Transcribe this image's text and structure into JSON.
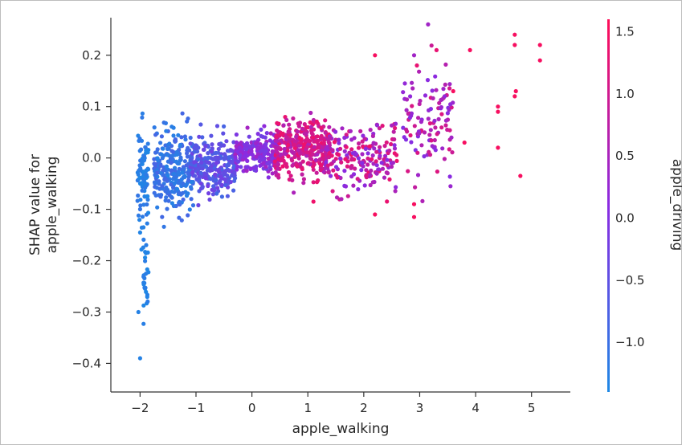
{
  "chart_data": {
    "type": "scatter",
    "title": "",
    "xlabel": "apple_walking",
    "ylabel_lines": [
      "SHAP value for",
      "apple_walking"
    ],
    "xlim": [
      -2.35,
      5.55
    ],
    "ylim": [
      -0.44,
      0.27
    ],
    "x_ticks": [
      {
        "value": -2,
        "label": "−2"
      },
      {
        "value": -1,
        "label": "−1"
      },
      {
        "value": 0,
        "label": "0"
      },
      {
        "value": 1,
        "label": "1"
      },
      {
        "value": 2,
        "label": "2"
      },
      {
        "value": 3,
        "label": "3"
      },
      {
        "value": 4,
        "label": "4"
      },
      {
        "value": 5,
        "label": "5"
      }
    ],
    "y_ticks": [
      {
        "value": 0.2,
        "label": "0.2"
      },
      {
        "value": 0.1,
        "label": "0.1"
      },
      {
        "value": 0.0,
        "label": "0.0"
      },
      {
        "value": -0.1,
        "label": "−0.1"
      },
      {
        "value": -0.2,
        "label": "−0.2"
      },
      {
        "value": -0.3,
        "label": "−0.3"
      },
      {
        "value": -0.4,
        "label": "−0.4"
      }
    ],
    "colorbar": {
      "label": "apple_driving",
      "range": [
        -1.4,
        1.6
      ],
      "ticks": [
        {
          "value": 1.5,
          "label": "1.5"
        },
        {
          "value": 1.0,
          "label": "1.0"
        },
        {
          "value": 0.5,
          "label": "0.5"
        },
        {
          "value": 0.0,
          "label": "0.0"
        },
        {
          "value": -0.5,
          "label": "−0.5"
        },
        {
          "value": -1.0,
          "label": "−1.0"
        }
      ],
      "color_low": "#1e88e5",
      "color_mid": "#8a2be2",
      "color_high": "#ff0d57"
    },
    "clusters": [
      {
        "x_range": [
          -2.05,
          -1.85
        ],
        "y_center": -0.04,
        "y_spread": 0.09,
        "count": 90,
        "c_range": [
          -1.4,
          -1.1
        ]
      },
      {
        "x_range": [
          -1.95,
          -1.85
        ],
        "y_center": -0.24,
        "y_spread": 0.06,
        "count": 25,
        "c_range": [
          -1.4,
          -1.2
        ]
      },
      {
        "x_range": [
          -1.75,
          -1.05
        ],
        "y_center": -0.02,
        "y_spread": 0.07,
        "count": 260,
        "c_range": [
          -1.3,
          -0.8
        ]
      },
      {
        "x_range": [
          -1.1,
          -0.3
        ],
        "y_center": -0.02,
        "y_spread": 0.045,
        "count": 260,
        "c_range": [
          -0.9,
          -0.2
        ]
      },
      {
        "x_range": [
          -0.3,
          0.5
        ],
        "y_center": 0.01,
        "y_spread": 0.03,
        "count": 220,
        "c_range": [
          -0.3,
          0.5
        ]
      },
      {
        "x_range": [
          0.4,
          1.4
        ],
        "y_center": 0.02,
        "y_spread": 0.045,
        "count": 330,
        "c_range": [
          0.5,
          1.4
        ]
      },
      {
        "x_range": [
          1.3,
          2.6
        ],
        "y_center": 0.0,
        "y_spread": 0.055,
        "count": 200,
        "c_range": [
          0.0,
          1.4
        ]
      },
      {
        "x_range": [
          2.7,
          3.6
        ],
        "y_center": 0.07,
        "y_spread": 0.08,
        "count": 110,
        "c_range": [
          0.0,
          1.2
        ]
      }
    ],
    "points": [
      {
        "x": -2.0,
        "y": -0.39,
        "c": -1.3
      },
      {
        "x": -2.03,
        "y": -0.3,
        "c": -1.3
      },
      {
        "x": 2.2,
        "y": 0.2,
        "c": 1.5
      },
      {
        "x": 3.15,
        "y": 0.26,
        "c": 0.4
      },
      {
        "x": 3.3,
        "y": 0.21,
        "c": 1.3
      },
      {
        "x": 3.9,
        "y": 0.21,
        "c": 1.5
      },
      {
        "x": 4.7,
        "y": 0.24,
        "c": 1.5
      },
      {
        "x": 4.7,
        "y": 0.22,
        "c": 1.5
      },
      {
        "x": 5.15,
        "y": 0.22,
        "c": 1.5
      },
      {
        "x": 5.15,
        "y": 0.19,
        "c": 1.5
      },
      {
        "x": 4.7,
        "y": 0.12,
        "c": 1.5
      },
      {
        "x": 4.72,
        "y": 0.13,
        "c": 1.5
      },
      {
        "x": 4.4,
        "y": 0.09,
        "c": 1.5
      },
      {
        "x": 4.4,
        "y": 0.1,
        "c": 1.5
      },
      {
        "x": 4.4,
        "y": 0.02,
        "c": 1.5
      },
      {
        "x": 4.8,
        "y": -0.035,
        "c": 1.5
      },
      {
        "x": 3.8,
        "y": 0.03,
        "c": 1.5
      },
      {
        "x": 3.6,
        "y": 0.13,
        "c": 1.5
      },
      {
        "x": 3.55,
        "y": -0.055,
        "c": 0.3
      },
      {
        "x": 2.9,
        "y": -0.115,
        "c": 1.5
      },
      {
        "x": 2.9,
        "y": -0.09,
        "c": 1.5
      },
      {
        "x": 2.2,
        "y": -0.11,
        "c": 1.5
      },
      {
        "x": 2.9,
        "y": 0.2,
        "c": 0.4
      },
      {
        "x": 2.95,
        "y": 0.18,
        "c": 1.3
      },
      {
        "x": 1.1,
        "y": -0.085,
        "c": 1.4
      },
      {
        "x": 1.6,
        "y": -0.08,
        "c": 0.6
      }
    ]
  }
}
